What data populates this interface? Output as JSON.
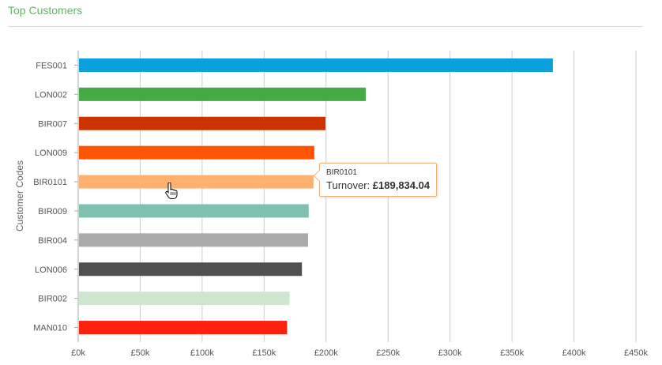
{
  "header": {
    "title": "Top Customers"
  },
  "chart_data": {
    "type": "bar",
    "orientation": "horizontal",
    "ylabel": "Customer Codes",
    "xlim": [
      0,
      450000
    ],
    "x_ticks": [
      0,
      50000,
      100000,
      150000,
      200000,
      250000,
      300000,
      350000,
      400000,
      450000
    ],
    "x_tick_labels": [
      "£0k",
      "£50k",
      "£100k",
      "£150k",
      "£200k",
      "£250k",
      "£300k",
      "£350k",
      "£400k",
      "£450k"
    ],
    "grid": true,
    "categories": [
      "FES001",
      "LON002",
      "BIR007",
      "LON009",
      "BIR0101",
      "BIR009",
      "BIR004",
      "LON006",
      "BIR002",
      "MAN010"
    ],
    "values": [
      383000,
      232000,
      199500,
      190500,
      189834.04,
      186000,
      185500,
      180500,
      170500,
      168500
    ],
    "colors": [
      "#0aa0dc",
      "#44aa44",
      "#cc3300",
      "#ff5500",
      "#ffb06e",
      "#80c0b0",
      "#aaaaaa",
      "#505050",
      "#cfe5cf",
      "#ff2010"
    ]
  },
  "tooltip": {
    "code": "BIR0101",
    "label": "Turnover:",
    "value": "£189,834.04"
  }
}
